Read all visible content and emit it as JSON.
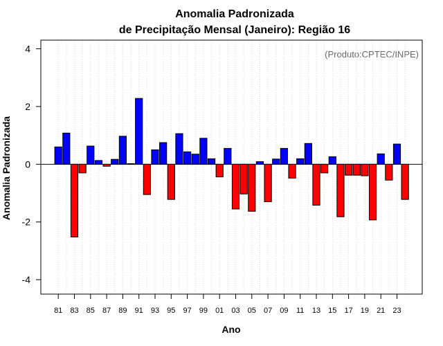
{
  "chart_data": {
    "type": "bar",
    "title": "Anomalia Padronizada",
    "subtitle": "de Precipitação Mensal (Janeiro): Região 16",
    "xlabel": "Ano",
    "ylabel": "Anomalia Padronizada",
    "credit": "(Produto:CPTEC/INPE)",
    "ylim": [
      -4.5,
      4.3
    ],
    "yticks": [
      -4,
      -2,
      0,
      2,
      4
    ],
    "ytick_labels": [
      "-4",
      "-2",
      "0",
      "2",
      "4"
    ],
    "grid": "vertical dotted",
    "categories": [
      "81",
      "82",
      "83",
      "84",
      "85",
      "86",
      "87",
      "88",
      "89",
      "90",
      "91",
      "92",
      "93",
      "94",
      "95",
      "96",
      "97",
      "98",
      "99",
      "00",
      "01",
      "02",
      "03",
      "04",
      "05",
      "06",
      "07",
      "08",
      "09",
      "10",
      "11",
      "12",
      "13",
      "14",
      "15",
      "16",
      "17",
      "18",
      "19",
      "20",
      "21",
      "22",
      "23",
      "24"
    ],
    "xtick_labels": [
      "81",
      "83",
      "85",
      "87",
      "89",
      "91",
      "93",
      "95",
      "97",
      "99",
      "01",
      "03",
      "05",
      "07",
      "09",
      "11",
      "13",
      "15",
      "17",
      "19",
      "21",
      "23"
    ],
    "values": [
      0.6,
      1.08,
      -2.52,
      -0.3,
      0.63,
      0.13,
      -0.07,
      0.17,
      0.97,
      0.02,
      2.28,
      -1.05,
      0.5,
      0.75,
      -1.22,
      1.06,
      0.43,
      0.35,
      0.9,
      0.19,
      -0.44,
      0.55,
      -1.55,
      -1.03,
      -1.63,
      0.09,
      -1.3,
      0.18,
      0.55,
      -0.48,
      0.19,
      0.72,
      -1.42,
      -0.3,
      0.26,
      -1.82,
      -0.38,
      -0.38,
      -0.4,
      -1.93,
      0.36,
      -0.55,
      0.7,
      -1.22
    ],
    "colors": {
      "positive": "#0000ff",
      "negative": "#ff0000",
      "outline": "#000000",
      "grid": "#d9d9d9"
    }
  }
}
